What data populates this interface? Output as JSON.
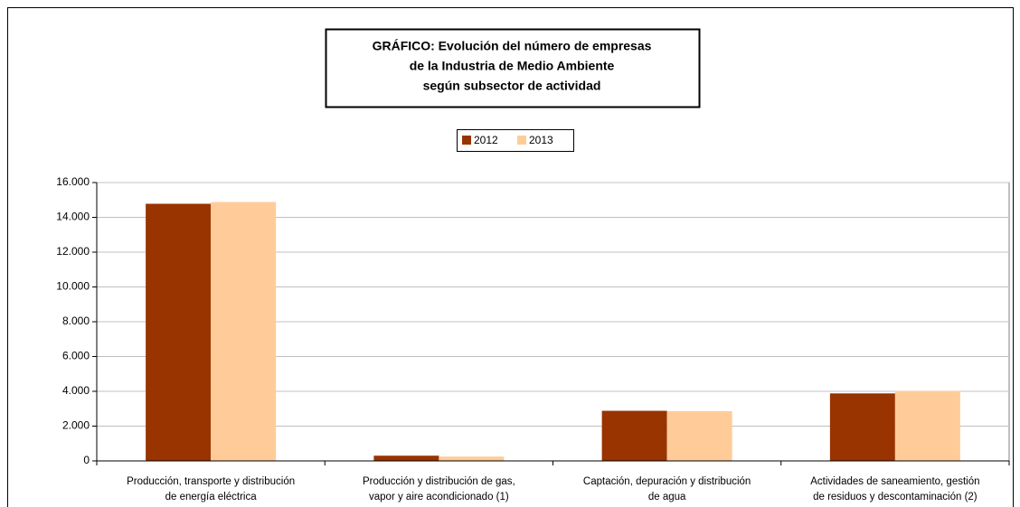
{
  "chart_data": {
    "type": "bar",
    "title": [
      "GRÁFICO: Evolución del número de empresas",
      "de la Industria de Medio Ambiente",
      "según subsector de actividad"
    ],
    "categories": [
      [
        "Producción, transporte y distribución",
        "de energía eléctrica"
      ],
      [
        "Producción y distribución de gas,",
        "vapor y aire acondicionado (1)"
      ],
      [
        "Captación, depuración y distribución",
        "de agua"
      ],
      [
        "Actividades de saneamiento, gestión",
        "de residuos y descontaminación (2)"
      ]
    ],
    "series": [
      {
        "name": "2012",
        "color": "#993300",
        "values": [
          14780,
          300,
          2880,
          3880
        ]
      },
      {
        "name": "2013",
        "color": "#ffcc99",
        "values": [
          14880,
          250,
          2860,
          4020
        ]
      }
    ],
    "ylim": [
      0,
      16000
    ],
    "yticks": [
      0,
      {
        "value": 2000,
        "label": "2.000"
      },
      {
        "value": 4000,
        "label": "4.000"
      },
      {
        "value": 6000,
        "label": "6.000"
      },
      {
        "value": 8000,
        "label": "8.000"
      },
      {
        "value": 10000,
        "label": "10.000"
      },
      {
        "value": 12000,
        "label": "12.000"
      },
      {
        "value": 14000,
        "label": "14.000"
      },
      {
        "value": 16000,
        "label": "16.000"
      }
    ],
    "grid": true,
    "legend": "top"
  }
}
